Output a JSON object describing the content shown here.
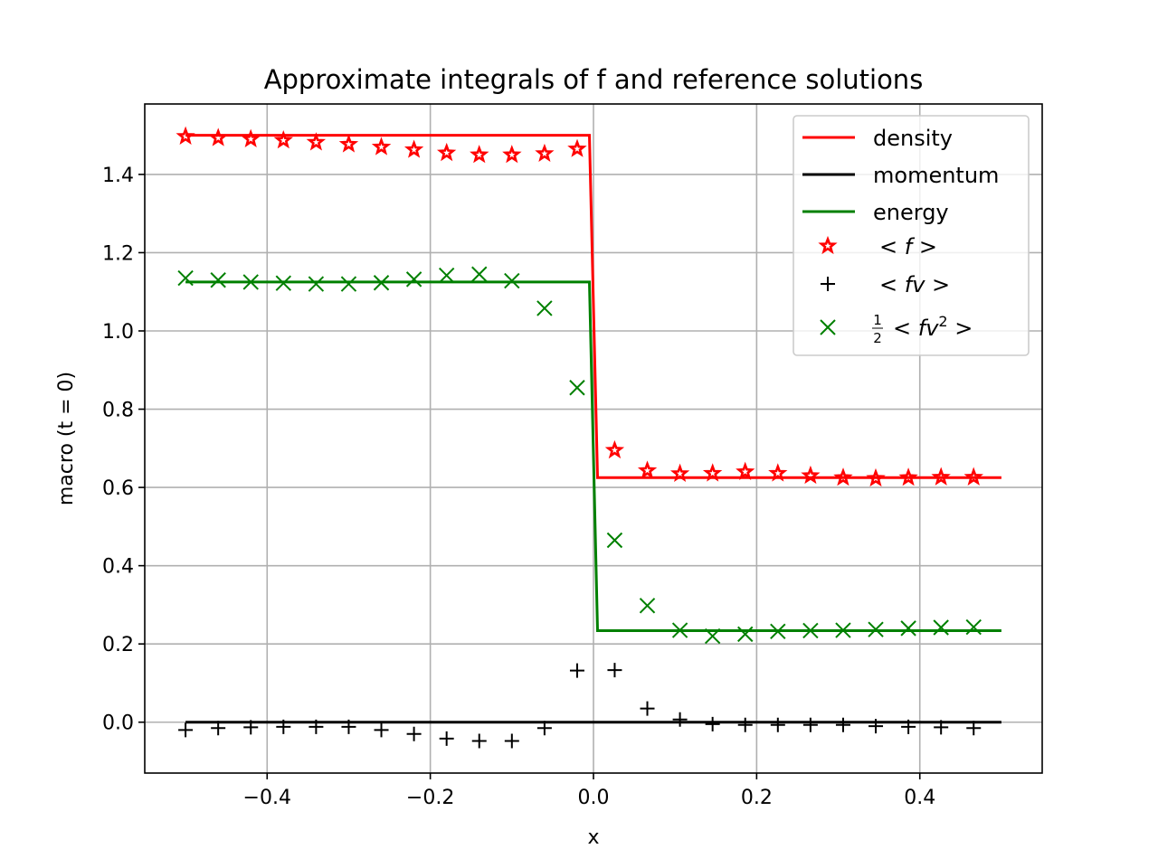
{
  "chart_data": {
    "type": "line",
    "title": "Approximate integrals of f and reference solutions",
    "xlabel": "x",
    "ylabel": "macro (t = 0)",
    "xlim": [
      -0.55,
      0.55
    ],
    "ylim": [
      -0.13,
      1.58
    ],
    "xticks": [
      -0.4,
      -0.2,
      0.0,
      0.2,
      0.4
    ],
    "xtick_labels": [
      "−0.4",
      "−0.2",
      "0.0",
      "0.2",
      "0.4"
    ],
    "yticks": [
      0.0,
      0.2,
      0.4,
      0.6,
      0.8,
      1.0,
      1.2,
      1.4
    ],
    "ytick_labels": [
      "0.0",
      "0.2",
      "0.4",
      "0.6",
      "0.8",
      "1.0",
      "1.2",
      "1.4"
    ],
    "grid": true,
    "legend_position": "top-right",
    "legend": [
      {
        "label": "density",
        "kind": "line",
        "color": "#ff0000"
      },
      {
        "label": "momentum",
        "kind": "line",
        "color": "#000000"
      },
      {
        "label": "energy",
        "kind": "line",
        "color": "#008000"
      },
      {
        "label_parts": [
          "< ",
          "f",
          " >"
        ],
        "kind": "star",
        "color": "#ff0000"
      },
      {
        "label_parts": [
          "< ",
          "fv",
          " >"
        ],
        "kind": "plus",
        "color": "#000000"
      },
      {
        "label_parts": [
          "< ",
          "fv",
          "2",
          " >"
        ],
        "frac": [
          "1",
          "2"
        ],
        "kind": "cross",
        "color": "#008000"
      }
    ],
    "lines": [
      {
        "name": "density",
        "color": "#ff0000",
        "x": [
          -0.5,
          -0.005,
          0.005,
          0.5
        ],
        "y": [
          1.5,
          1.5,
          0.625,
          0.625
        ]
      },
      {
        "name": "momentum",
        "color": "#000000",
        "x": [
          -0.5,
          0.5
        ],
        "y": [
          0.0,
          0.0
        ]
      },
      {
        "name": "energy",
        "color": "#008000",
        "x": [
          -0.5,
          -0.005,
          0.005,
          0.5
        ],
        "y": [
          1.125,
          1.125,
          0.234,
          0.234
        ]
      }
    ],
    "markers": [
      {
        "kind": "star",
        "color": "#ff0000",
        "x": [
          -0.5,
          -0.46,
          -0.42,
          -0.38,
          -0.34,
          -0.3,
          -0.26,
          -0.22,
          -0.18,
          -0.14,
          -0.1,
          -0.06,
          -0.02,
          0.026,
          0.066,
          0.106,
          0.146,
          0.186,
          0.226,
          0.266,
          0.306,
          0.346,
          0.386,
          0.426,
          0.466
        ],
        "y": [
          1.497,
          1.493,
          1.49,
          1.487,
          1.482,
          1.477,
          1.47,
          1.463,
          1.455,
          1.45,
          1.45,
          1.453,
          1.465,
          0.695,
          0.643,
          0.635,
          0.636,
          0.64,
          0.636,
          0.63,
          0.625,
          0.623,
          0.625,
          0.626,
          0.626
        ]
      },
      {
        "kind": "plus",
        "color": "#000000",
        "x": [
          -0.5,
          -0.46,
          -0.42,
          -0.38,
          -0.34,
          -0.3,
          -0.26,
          -0.22,
          -0.18,
          -0.14,
          -0.1,
          -0.06,
          -0.02,
          0.026,
          0.066,
          0.106,
          0.146,
          0.186,
          0.226,
          0.266,
          0.306,
          0.346,
          0.386,
          0.426,
          0.466
        ],
        "y": [
          -0.02,
          -0.015,
          -0.013,
          -0.012,
          -0.012,
          -0.012,
          -0.02,
          -0.03,
          -0.042,
          -0.048,
          -0.048,
          -0.015,
          0.132,
          0.133,
          0.035,
          0.007,
          -0.005,
          -0.007,
          -0.007,
          -0.007,
          -0.007,
          -0.01,
          -0.012,
          -0.013,
          -0.015
        ]
      },
      {
        "kind": "cross",
        "color": "#008000",
        "x": [
          -0.5,
          -0.46,
          -0.42,
          -0.38,
          -0.34,
          -0.3,
          -0.26,
          -0.22,
          -0.18,
          -0.14,
          -0.1,
          -0.06,
          -0.02,
          0.026,
          0.066,
          0.106,
          0.146,
          0.186,
          0.226,
          0.266,
          0.306,
          0.346,
          0.386,
          0.426,
          0.466
        ],
        "y": [
          1.135,
          1.13,
          1.125,
          1.122,
          1.12,
          1.12,
          1.123,
          1.132,
          1.142,
          1.145,
          1.128,
          1.058,
          0.855,
          0.465,
          0.298,
          0.235,
          0.22,
          0.225,
          0.232,
          0.234,
          0.235,
          0.237,
          0.24,
          0.242,
          0.243
        ]
      }
    ],
    "colors": {
      "density": "#ff0000",
      "momentum": "#000000",
      "energy": "#008000",
      "grid": "#b0b0b0",
      "axes": "#000000"
    }
  }
}
